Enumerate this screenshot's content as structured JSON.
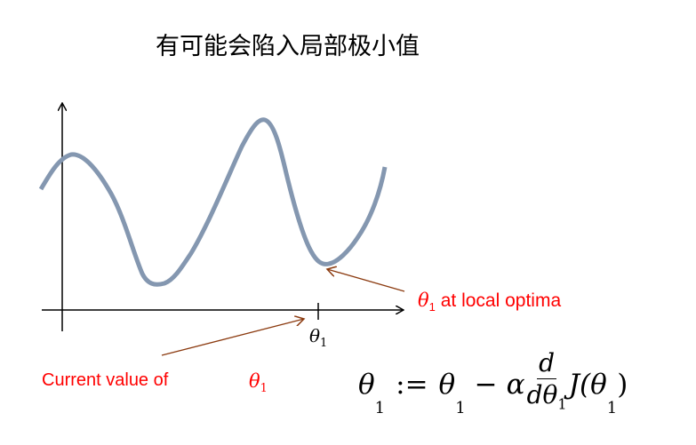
{
  "title": "有可能会陷入局部极小值",
  "axis": {
    "x_tick_label": "θ",
    "x_tick_sub": "1"
  },
  "annotations": {
    "local_optima": {
      "symbol": "θ",
      "sub": "1",
      "text": " at local optima"
    },
    "current_value": {
      "text": "Current value of",
      "symbol": "θ",
      "sub": "1"
    }
  },
  "formula": {
    "lhs": "θ",
    "lhs_sub": "1",
    "assign": ":=",
    "rhs1": "θ",
    "rhs1_sub": "1",
    "minus": "−",
    "alpha": "α",
    "num": "d",
    "den": "dθ",
    "den_sub": "1",
    "func": "J(θ",
    "func_sub": "1",
    "close": ")"
  },
  "colors": {
    "curve": "#8497b0",
    "arrow": "#8b3a0f",
    "label": "#ff0000"
  }
}
